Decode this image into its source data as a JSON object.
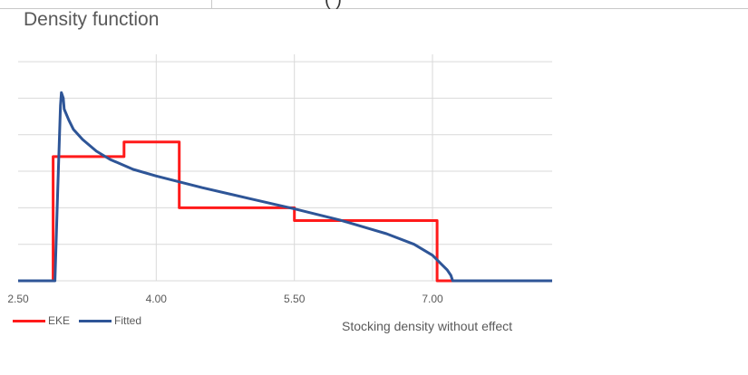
{
  "top_fragment": "(                    )",
  "chart_data": {
    "type": "line",
    "title": "Density function",
    "xlabel": "Stocking density without effect",
    "ylabel": "",
    "xlim": [
      2.5,
      8.3
    ],
    "ylim": [
      0,
      0.62
    ],
    "x_ticks": [
      "2.50",
      "4.00",
      "5.50",
      "7.00"
    ],
    "x_tick_values": [
      2.5,
      4.0,
      5.5,
      7.0
    ],
    "y_gridlines": [
      0.1,
      0.2,
      0.3,
      0.4,
      0.5,
      0.6
    ],
    "grid": true,
    "legend": "bottom-left",
    "series": [
      {
        "name": "EKE",
        "color": "#ff1a1a",
        "x": [
          2.5,
          2.88,
          2.88,
          3.65,
          3.65,
          4.25,
          4.25,
          5.5,
          5.5,
          7.05,
          7.05,
          8.3
        ],
        "y": [
          0,
          0,
          0.34,
          0.34,
          0.38,
          0.38,
          0.2,
          0.2,
          0.165,
          0.165,
          0,
          0
        ]
      },
      {
        "name": "Fitted",
        "color": "#2e5597",
        "x": [
          2.5,
          2.9,
          2.93,
          2.96,
          2.97,
          2.99,
          3.0,
          3.05,
          3.1,
          3.2,
          3.35,
          3.5,
          3.75,
          4.0,
          4.5,
          5.0,
          5.5,
          6.0,
          6.5,
          6.8,
          7.0,
          7.1,
          7.16,
          7.2,
          7.22,
          8.3
        ],
        "y": [
          0,
          0,
          0.25,
          0.48,
          0.515,
          0.5,
          0.47,
          0.44,
          0.415,
          0.387,
          0.355,
          0.332,
          0.305,
          0.287,
          0.255,
          0.226,
          0.197,
          0.166,
          0.129,
          0.1,
          0.07,
          0.045,
          0.03,
          0.015,
          0,
          0
        ]
      }
    ]
  }
}
